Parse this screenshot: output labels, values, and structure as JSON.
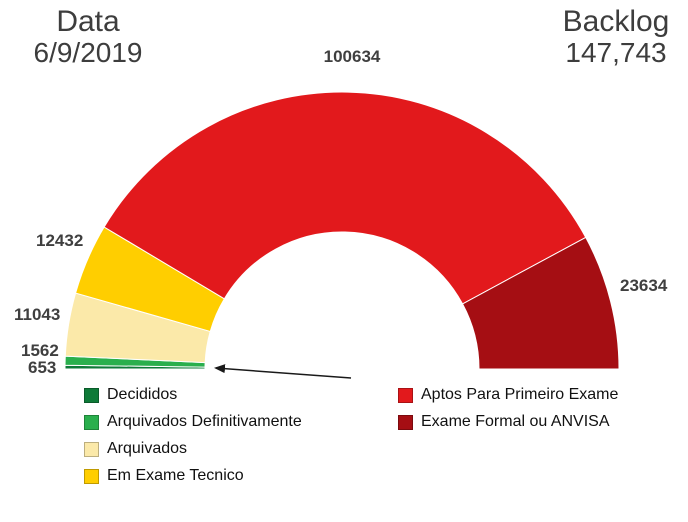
{
  "header": {
    "date_label": "Data",
    "date_value": "6/9/2019",
    "backlog_label": "Backlog",
    "backlog_value": "147,743"
  },
  "chart_data": {
    "type": "pie",
    "variant": "semicircle_donut",
    "title": "",
    "legend_position": "bottom-two-columns",
    "start_angle_deg": 180,
    "end_angle_deg": 0,
    "annotation": "arrow pointing to the thin green segments at bottom left",
    "series": [
      {
        "name": "Decididos",
        "value": 653,
        "label": "653",
        "color": "#0e7a38"
      },
      {
        "name": "Arquivados Definitivamente",
        "value": 1562,
        "label": "1562",
        "color": "#2aaf4d"
      },
      {
        "name": "Arquivados",
        "value": 11043,
        "label": "11043",
        "color": "#fbe9a9"
      },
      {
        "name": "Em Exame Tecnico",
        "value": 12432,
        "label": "12432",
        "color": "#ffce00"
      },
      {
        "name": "Aptos Para Primeiro Exame",
        "value": 100634,
        "label": "100634",
        "color": "#e2191c"
      },
      {
        "name": "Exame Formal ou ANVISA",
        "value": 23634,
        "label": "23634",
        "color": "#a50e13"
      }
    ]
  }
}
